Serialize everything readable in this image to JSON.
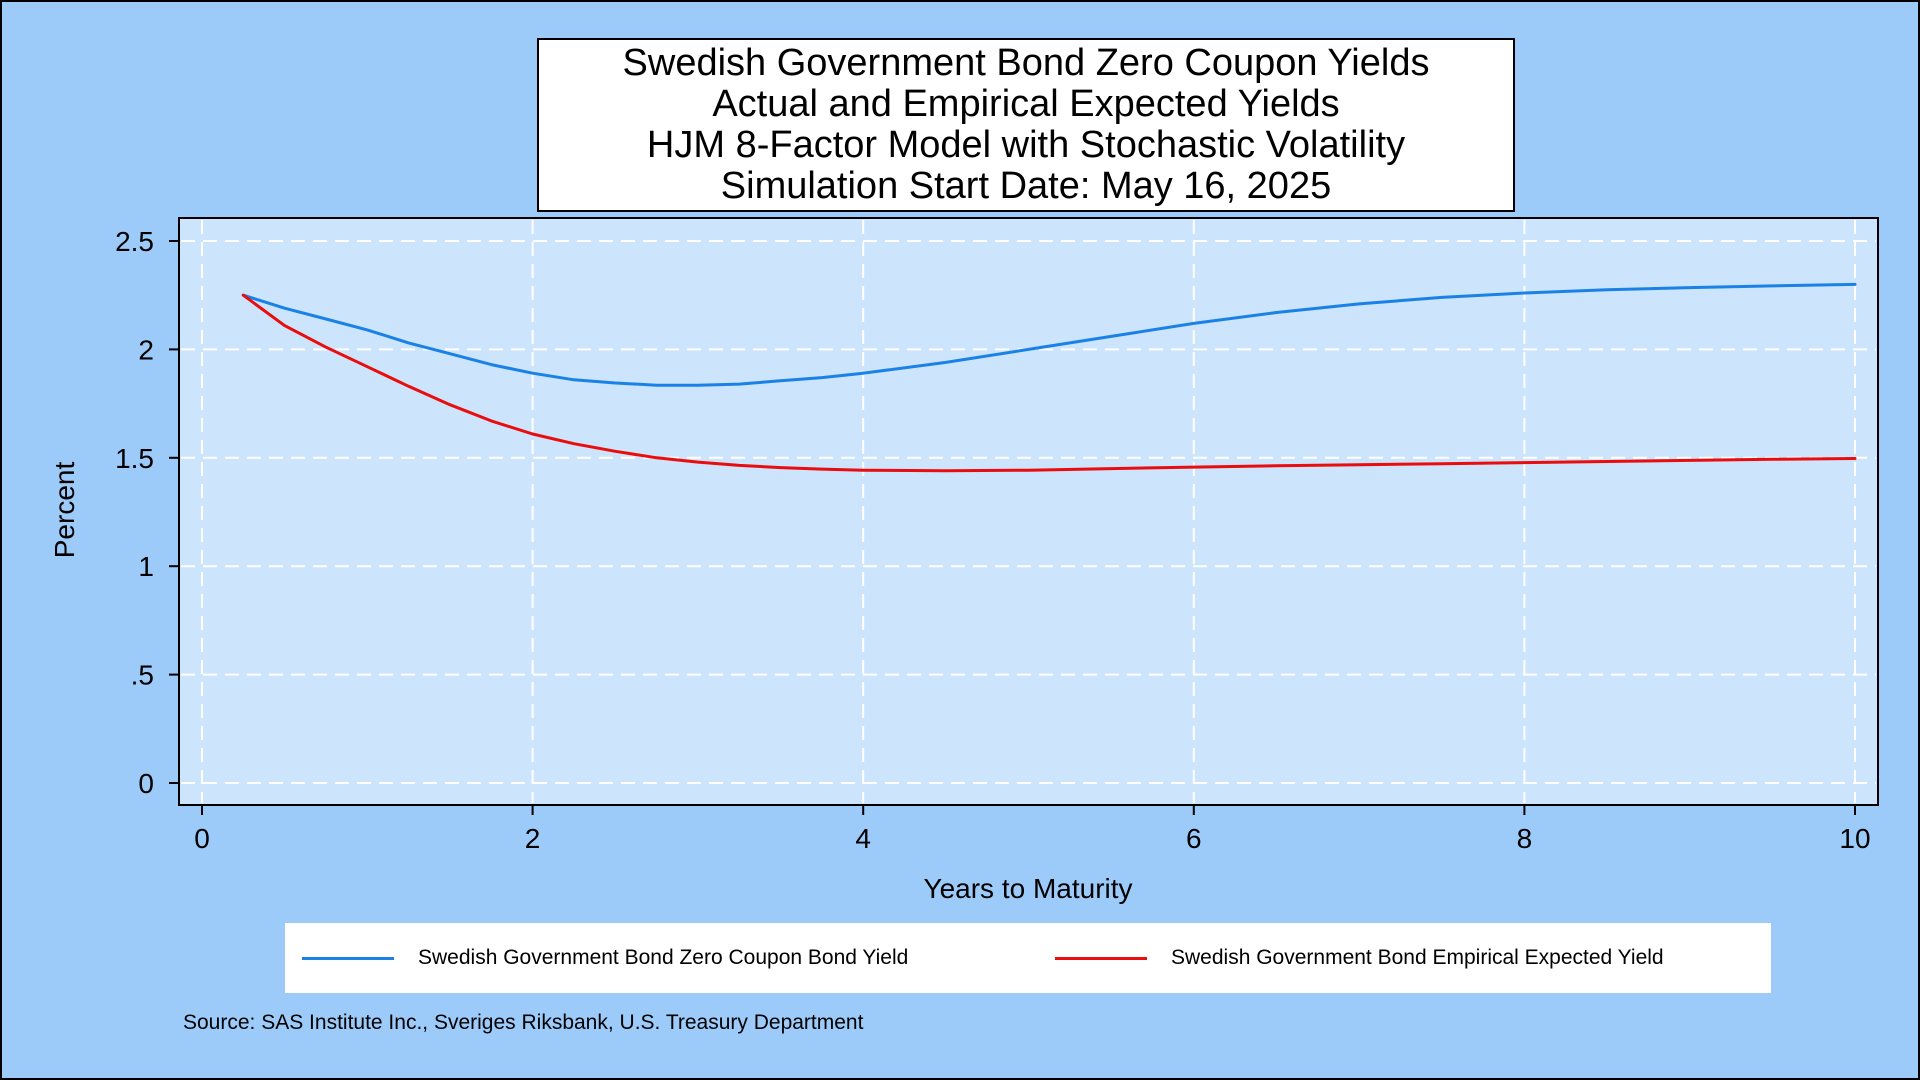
{
  "colors": {
    "background": "#9ccbfa",
    "plot_area": "#cce4fc",
    "grid": "#ffffff",
    "series_actual": "#1a82e6",
    "series_expected": "#ea0d0d"
  },
  "title_lines": [
    "Swedish Government Bond Zero Coupon Yields",
    "Actual and Empirical Expected Yields",
    "HJM 8-Factor Model with Stochastic Volatility",
    "Simulation Start Date: May 16, 2025"
  ],
  "legend": {
    "items": [
      {
        "label": "Swedish Government Bond Zero Coupon Bond Yield",
        "color": "#1a82e6"
      },
      {
        "label": "Swedish Government Bond Empirical Expected Yield",
        "color": "#ea0d0d"
      }
    ]
  },
  "source": "Source: SAS Institute Inc., Sveriges Riksbank, U.S. Treasury Department",
  "chart_data": {
    "type": "line",
    "title": "Swedish Government Bond Zero Coupon Yields Actual and Empirical Expected Yields HJM 8-Factor Model with Stochastic Volatility Simulation Start Date: May 16, 2025",
    "xlabel": "Years to Maturity",
    "ylabel": "Percent",
    "xlim": [
      0,
      10
    ],
    "ylim": [
      0,
      2.5
    ],
    "x_ticks": [
      0,
      2,
      4,
      6,
      8,
      10
    ],
    "x_tick_labels": [
      "0",
      "2",
      "4",
      "6",
      "8",
      "10"
    ],
    "y_ticks": [
      0,
      0.5,
      1,
      1.5,
      2,
      2.5
    ],
    "y_tick_labels": [
      "0",
      ".5",
      "1",
      "1.5",
      "2",
      "2.5"
    ],
    "grid": true,
    "legend_position": "bottom",
    "series": [
      {
        "name": "Swedish Government Bond Zero Coupon Bond Yield",
        "color": "#1a82e6",
        "x": [
          0.25,
          0.5,
          0.75,
          1,
          1.25,
          1.5,
          1.75,
          2,
          2.25,
          2.5,
          2.75,
          3,
          3.25,
          3.5,
          3.75,
          4,
          4.5,
          5,
          5.5,
          6,
          6.5,
          7,
          7.5,
          8,
          8.5,
          9,
          9.5,
          10
        ],
        "values": [
          2.25,
          2.19,
          2.14,
          2.09,
          2.03,
          1.98,
          1.93,
          1.89,
          1.86,
          1.845,
          1.835,
          1.835,
          1.84,
          1.855,
          1.87,
          1.89,
          1.94,
          2.0,
          2.06,
          2.12,
          2.17,
          2.21,
          2.24,
          2.26,
          2.275,
          2.285,
          2.293,
          2.3
        ]
      },
      {
        "name": "Swedish Government Bond Empirical Expected Yield",
        "color": "#ea0d0d",
        "x": [
          0.25,
          0.5,
          0.75,
          1,
          1.25,
          1.5,
          1.75,
          2,
          2.25,
          2.5,
          2.75,
          3,
          3.25,
          3.5,
          3.75,
          4,
          4.5,
          5,
          5.5,
          6,
          6.5,
          7,
          7.5,
          8,
          8.5,
          9,
          9.5,
          10
        ],
        "values": [
          2.25,
          2.11,
          2.01,
          1.92,
          1.83,
          1.745,
          1.67,
          1.61,
          1.565,
          1.53,
          1.5,
          1.48,
          1.465,
          1.455,
          1.448,
          1.443,
          1.44,
          1.443,
          1.45,
          1.457,
          1.463,
          1.468,
          1.473,
          1.478,
          1.483,
          1.488,
          1.493,
          1.497
        ]
      }
    ]
  }
}
